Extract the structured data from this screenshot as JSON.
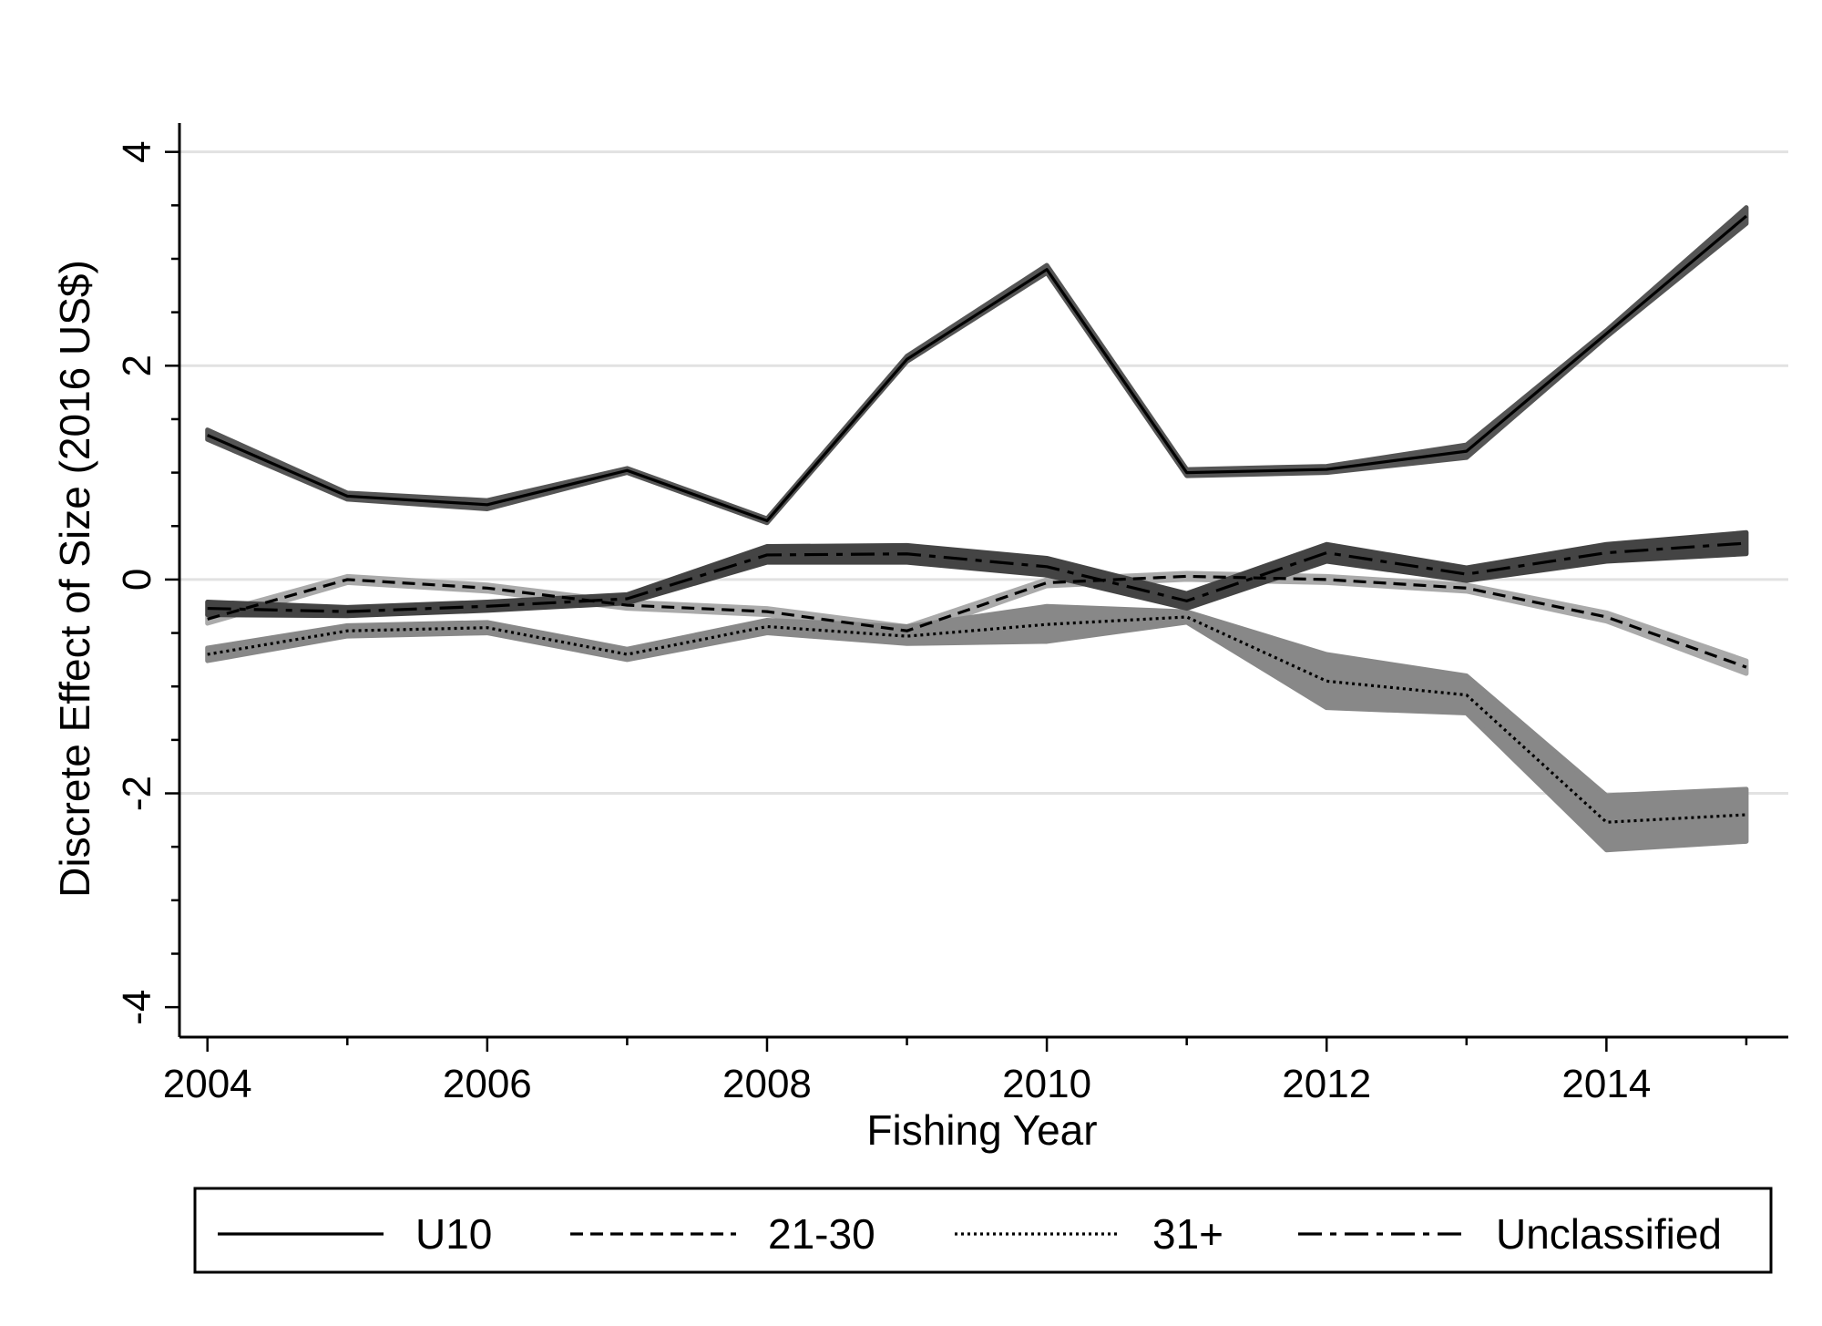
{
  "chart_data": {
    "type": "line",
    "xlabel": "Fishing Year",
    "ylabel": "Discrete Effect of Size (2016 US$)",
    "x": [
      2004,
      2005,
      2006,
      2007,
      2008,
      2009,
      2010,
      2011,
      2012,
      2013,
      2014,
      2015
    ],
    "xlim": [
      2004,
      2015
    ],
    "ylim": [
      -4,
      4
    ],
    "x_ticks": [
      2004,
      2006,
      2008,
      2010,
      2012,
      2014
    ],
    "x_tick_labels": [
      "2004",
      "2006",
      "2008",
      "2010",
      "2012",
      "2014"
    ],
    "y_ticks": [
      -4,
      -2,
      0,
      2,
      4
    ],
    "y_tick_labels": [
      "-4",
      "-2",
      "0",
      "2",
      "4"
    ],
    "grid": true,
    "legend_position": "bottom",
    "series": [
      {
        "name": "U10",
        "style": "solid",
        "band_color": "#555555",
        "values": [
          1.35,
          0.78,
          0.7,
          1.02,
          0.55,
          2.06,
          2.9,
          1.0,
          1.03,
          1.2,
          2.3,
          3.4
        ],
        "lower": [
          1.31,
          0.75,
          0.66,
          1.0,
          0.53,
          2.04,
          2.87,
          0.97,
          1.0,
          1.14,
          2.27,
          3.33
        ],
        "upper": [
          1.4,
          0.81,
          0.74,
          1.04,
          0.57,
          2.09,
          2.94,
          1.03,
          1.06,
          1.26,
          2.33,
          3.48
        ]
      },
      {
        "name": "21-30",
        "style": "dashed",
        "band_color": "#aaaaaa",
        "values": [
          -0.37,
          0.0,
          -0.08,
          -0.24,
          -0.3,
          -0.48,
          -0.03,
          0.03,
          0.0,
          -0.08,
          -0.35,
          -0.82
        ],
        "lower": [
          -0.41,
          -0.03,
          -0.11,
          -0.27,
          -0.33,
          -0.52,
          -0.06,
          0.0,
          -0.03,
          -0.11,
          -0.39,
          -0.88
        ],
        "upper": [
          -0.33,
          0.03,
          -0.05,
          -0.21,
          -0.27,
          -0.44,
          0.0,
          0.06,
          0.03,
          -0.05,
          -0.31,
          -0.76
        ]
      },
      {
        "name": "31+",
        "style": "dotted",
        "band_color": "#888888",
        "values": [
          -0.7,
          -0.48,
          -0.45,
          -0.7,
          -0.44,
          -0.53,
          -0.42,
          -0.35,
          -0.95,
          -1.08,
          -2.27,
          -2.2
        ],
        "lower": [
          -0.76,
          -0.53,
          -0.5,
          -0.75,
          -0.5,
          -0.6,
          -0.58,
          -0.4,
          -1.2,
          -1.25,
          -2.53,
          -2.45
        ],
        "upper": [
          -0.64,
          -0.43,
          -0.4,
          -0.65,
          -0.38,
          -0.44,
          -0.25,
          -0.3,
          -0.7,
          -0.9,
          -2.02,
          -1.96
        ]
      },
      {
        "name": "Unclassified",
        "style": "dashdot",
        "band_color": "#444444",
        "values": [
          -0.27,
          -0.3,
          -0.25,
          -0.18,
          0.23,
          0.24,
          0.12,
          -0.2,
          0.25,
          0.05,
          0.25,
          0.34
        ],
        "lower": [
          -0.33,
          -0.34,
          -0.29,
          -0.22,
          0.16,
          0.16,
          0.04,
          -0.27,
          0.17,
          -0.01,
          0.17,
          0.24
        ],
        "upper": [
          -0.21,
          -0.26,
          -0.21,
          -0.14,
          0.31,
          0.32,
          0.2,
          -0.13,
          0.33,
          0.11,
          0.33,
          0.44
        ]
      }
    ]
  }
}
